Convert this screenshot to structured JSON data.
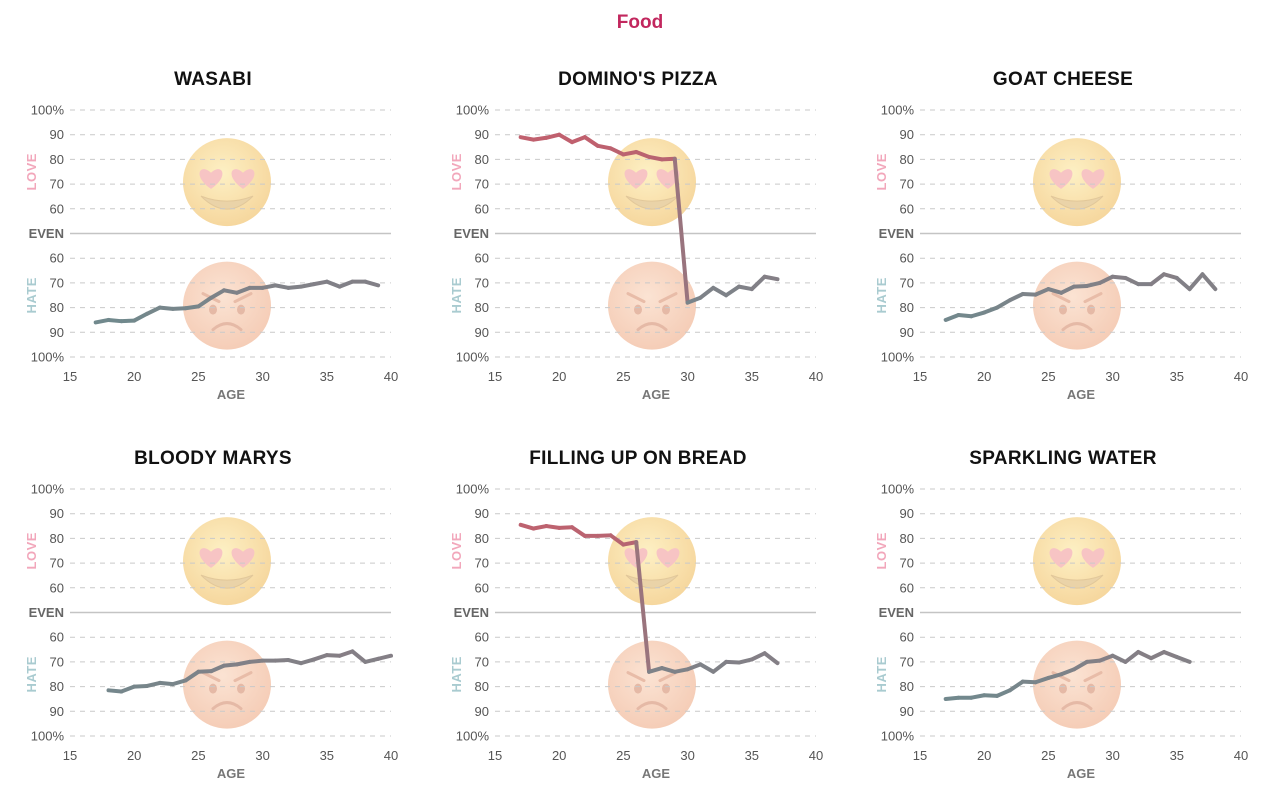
{
  "page_title": "Food",
  "colors": {
    "title": "#c2275e",
    "love_series": "#c0606e",
    "hate_series": "#6f8a8e",
    "love_label": "#f2a7bb",
    "hate_label": "#a9cbd0"
  },
  "icons": [
    "heart-eyes-emoji",
    "angry-face-emoji"
  ],
  "chart_data": [
    {
      "type": "line",
      "title": "WASABI",
      "xlabel": "AGE",
      "xlim": [
        15,
        40
      ],
      "ylim": [
        -100,
        100
      ],
      "grid": true,
      "xticks": [
        15,
        20,
        25,
        30,
        35,
        40
      ],
      "ytick_labels": [
        "100%",
        "90",
        "80",
        "70",
        "60",
        "EVEN",
        "60",
        "70",
        "80",
        "90",
        "100%"
      ],
      "region_labels": {
        "top": "LOVE",
        "bottom": "HATE"
      },
      "x": [
        17,
        18,
        19,
        20,
        21,
        22,
        23,
        24,
        25,
        26,
        27,
        28,
        29,
        30,
        31,
        32,
        33,
        34,
        35,
        36,
        37,
        38,
        39
      ],
      "y": [
        -72,
        -70,
        -71,
        -70.5,
        -65,
        -60,
        -61,
        -60.5,
        -59,
        -52,
        -46,
        -48,
        -44,
        -44,
        -42,
        -44,
        -43,
        -41,
        -39,
        -43,
        -39,
        -39,
        -42
      ]
    },
    {
      "type": "line",
      "title": "DOMINO'S PIZZA",
      "xlabel": "AGE",
      "xlim": [
        15,
        40
      ],
      "ylim": [
        -100,
        100
      ],
      "grid": true,
      "xticks": [
        15,
        20,
        25,
        30,
        35,
        40
      ],
      "ytick_labels": [
        "100%",
        "90",
        "80",
        "70",
        "60",
        "EVEN",
        "60",
        "70",
        "80",
        "90",
        "100%"
      ],
      "region_labels": {
        "top": "LOVE",
        "bottom": "HATE"
      },
      "x": [
        17,
        18,
        19,
        20,
        21,
        22,
        23,
        24,
        25,
        26,
        27,
        28,
        29,
        30,
        31,
        32,
        33,
        34,
        35,
        36,
        37
      ],
      "y": [
        78,
        76,
        77.5,
        80,
        74,
        78,
        71,
        69,
        64,
        66,
        62,
        60,
        60.5,
        -56,
        -52,
        -44,
        -50,
        -43,
        -45,
        -35,
        -37
      ]
    },
    {
      "type": "line",
      "title": "GOAT CHEESE",
      "xlabel": "AGE",
      "xlim": [
        15,
        40
      ],
      "ylim": [
        -100,
        100
      ],
      "grid": true,
      "xticks": [
        15,
        20,
        25,
        30,
        35,
        40
      ],
      "ytick_labels": [
        "100%",
        "90",
        "80",
        "70",
        "60",
        "EVEN",
        "60",
        "70",
        "80",
        "90",
        "100%"
      ],
      "region_labels": {
        "top": "LOVE",
        "bottom": "HATE"
      },
      "x": [
        17,
        18,
        19,
        20,
        21,
        22,
        23,
        24,
        25,
        26,
        27,
        28,
        29,
        30,
        31,
        32,
        33,
        34,
        35,
        36,
        37,
        38
      ],
      "y": [
        -70,
        -66,
        -67,
        -64,
        -60,
        -54,
        -49,
        -49.5,
        -45,
        -48,
        -43,
        -42.5,
        -40,
        -35,
        -36,
        -41,
        -41,
        -33,
        -36,
        -45,
        -33,
        -45
      ]
    },
    {
      "type": "line",
      "title": "BLOODY MARYS",
      "xlabel": "AGE",
      "xlim": [
        15,
        40
      ],
      "ylim": [
        -100,
        100
      ],
      "grid": true,
      "xticks": [
        15,
        20,
        25,
        30,
        35,
        40
      ],
      "ytick_labels": [
        "100%",
        "90",
        "80",
        "70",
        "60",
        "EVEN",
        "60",
        "70",
        "80",
        "90",
        "100%"
      ],
      "region_labels": {
        "top": "LOVE",
        "bottom": "HATE"
      },
      "x": [
        18,
        19,
        20,
        21,
        22,
        23,
        24,
        25,
        26,
        27,
        28,
        29,
        30,
        31,
        32,
        33,
        34,
        35,
        36,
        37,
        38,
        39,
        40
      ],
      "y": [
        -63,
        -64,
        -60,
        -59.5,
        -57,
        -58,
        -55,
        -48,
        -47.5,
        -43,
        -42,
        -40,
        -39,
        -39,
        -38.5,
        -41,
        -38,
        -34.5,
        -35,
        -31.5,
        -40,
        -37.5,
        -35
      ]
    },
    {
      "type": "line",
      "title": "FILLING UP ON BREAD",
      "xlabel": "AGE",
      "xlim": [
        15,
        40
      ],
      "ylim": [
        -100,
        100
      ],
      "grid": true,
      "xticks": [
        15,
        20,
        25,
        30,
        35,
        40
      ],
      "ytick_labels": [
        "100%",
        "90",
        "80",
        "70",
        "60",
        "EVEN",
        "60",
        "70",
        "80",
        "90",
        "100%"
      ],
      "region_labels": {
        "top": "LOVE",
        "bottom": "HATE"
      },
      "x": [
        17,
        18,
        19,
        20,
        21,
        22,
        23,
        24,
        25,
        26,
        27,
        28,
        29,
        30,
        31,
        32,
        33,
        34,
        35,
        36,
        37
      ],
      "y": [
        71,
        68,
        70,
        68.5,
        69,
        62,
        62,
        62.5,
        55,
        57,
        -48,
        -45,
        -48,
        -46,
        -42,
        -48,
        -40,
        -40.5,
        -38,
        -33,
        -41
      ]
    },
    {
      "type": "line",
      "title": "SPARKLING WATER",
      "xlabel": "AGE",
      "xlim": [
        15,
        40
      ],
      "ylim": [
        -100,
        100
      ],
      "grid": true,
      "xticks": [
        15,
        20,
        25,
        30,
        35,
        40
      ],
      "ytick_labels": [
        "100%",
        "90",
        "80",
        "70",
        "60",
        "EVEN",
        "60",
        "70",
        "80",
        "90",
        "100%"
      ],
      "region_labels": {
        "top": "LOVE",
        "bottom": "HATE"
      },
      "x": [
        17,
        18,
        19,
        20,
        21,
        22,
        23,
        24,
        25,
        26,
        27,
        28,
        29,
        30,
        31,
        32,
        33,
        34,
        35,
        36
      ],
      "y": [
        -70,
        -69,
        -69,
        -67,
        -67.5,
        -63,
        -56,
        -56.5,
        -53,
        -50,
        -46,
        -40,
        -39,
        -35,
        -40,
        -32,
        -37,
        -32,
        -36,
        -40
      ]
    }
  ]
}
